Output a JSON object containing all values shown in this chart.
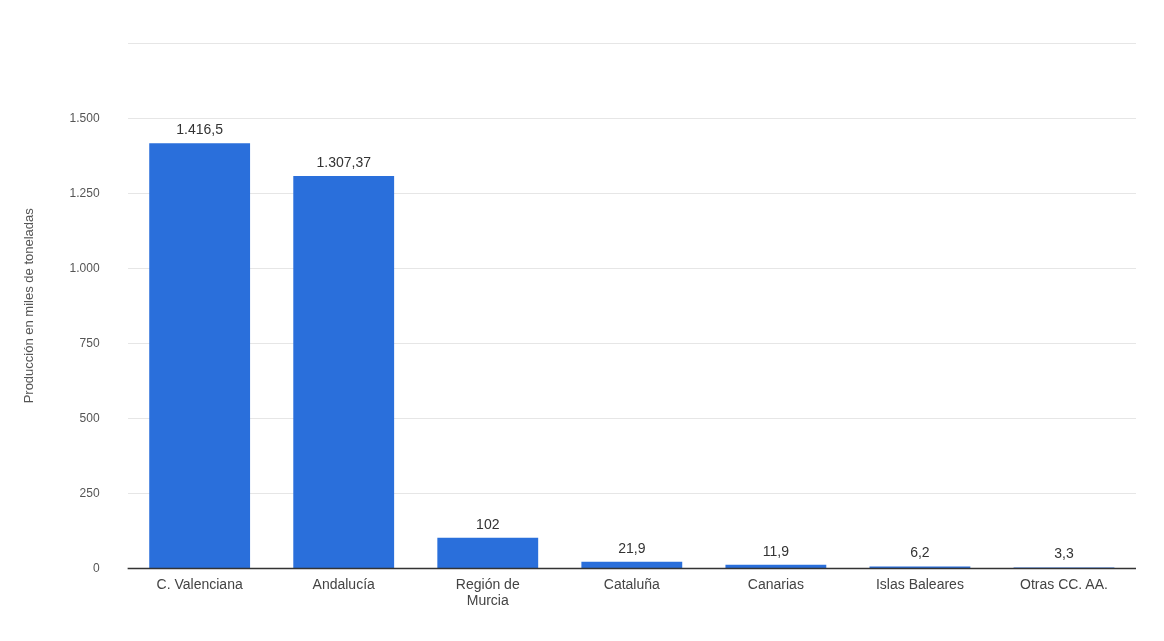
{
  "chart_data": {
    "type": "bar",
    "ylabel": "Producción en miles de toneladas",
    "categories": [
      "C. Valenciana",
      "Andalucía",
      "Región de Murcia",
      "Cataluña",
      "Canarias",
      "Islas Baleares",
      "Otras CC. AA."
    ],
    "values": [
      1416.5,
      1307.37,
      102,
      21.9,
      11.9,
      6.2,
      3.3
    ],
    "value_labels": [
      "1.416,5",
      "1.307,37",
      "102",
      "21,9",
      "11,9",
      "6,2",
      "3,3"
    ],
    "color": "#2a6fdb",
    "ylim": [
      0,
      1750
    ],
    "yticks": [
      0,
      250,
      500,
      750,
      {
        "value": 1000,
        "label": "1.000"
      },
      {
        "value": 1250,
        "label": "1.250"
      },
      {
        "value": 1500,
        "label": "1.500"
      },
      {
        "value": 1750,
        "label": null
      }
    ],
    "grid": "y",
    "legend": false
  }
}
